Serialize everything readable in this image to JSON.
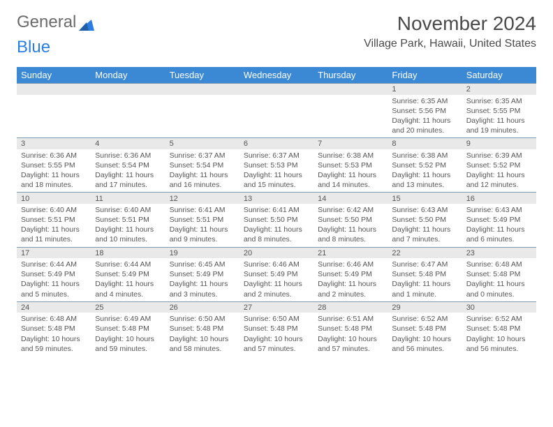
{
  "logo": {
    "word1": "General",
    "word2": "Blue"
  },
  "title": "November 2024",
  "subtitle": "Village Park, Hawaii, United States",
  "colors": {
    "header_bg": "#3b88d4",
    "header_text": "#ffffff",
    "daynum_bg": "#e9e9e9",
    "border": "#7f9ab0",
    "text": "#555555",
    "logo_gray": "#6b6b6b",
    "logo_blue": "#2a7de1"
  },
  "weekdays": [
    "Sunday",
    "Monday",
    "Tuesday",
    "Wednesday",
    "Thursday",
    "Friday",
    "Saturday"
  ],
  "weeks": [
    [
      null,
      null,
      null,
      null,
      null,
      {
        "n": "1",
        "sunrise": "Sunrise: 6:35 AM",
        "sunset": "Sunset: 5:56 PM",
        "daylight": "Daylight: 11 hours and 20 minutes."
      },
      {
        "n": "2",
        "sunrise": "Sunrise: 6:35 AM",
        "sunset": "Sunset: 5:55 PM",
        "daylight": "Daylight: 11 hours and 19 minutes."
      }
    ],
    [
      {
        "n": "3",
        "sunrise": "Sunrise: 6:36 AM",
        "sunset": "Sunset: 5:55 PM",
        "daylight": "Daylight: 11 hours and 18 minutes."
      },
      {
        "n": "4",
        "sunrise": "Sunrise: 6:36 AM",
        "sunset": "Sunset: 5:54 PM",
        "daylight": "Daylight: 11 hours and 17 minutes."
      },
      {
        "n": "5",
        "sunrise": "Sunrise: 6:37 AM",
        "sunset": "Sunset: 5:54 PM",
        "daylight": "Daylight: 11 hours and 16 minutes."
      },
      {
        "n": "6",
        "sunrise": "Sunrise: 6:37 AM",
        "sunset": "Sunset: 5:53 PM",
        "daylight": "Daylight: 11 hours and 15 minutes."
      },
      {
        "n": "7",
        "sunrise": "Sunrise: 6:38 AM",
        "sunset": "Sunset: 5:53 PM",
        "daylight": "Daylight: 11 hours and 14 minutes."
      },
      {
        "n": "8",
        "sunrise": "Sunrise: 6:38 AM",
        "sunset": "Sunset: 5:52 PM",
        "daylight": "Daylight: 11 hours and 13 minutes."
      },
      {
        "n": "9",
        "sunrise": "Sunrise: 6:39 AM",
        "sunset": "Sunset: 5:52 PM",
        "daylight": "Daylight: 11 hours and 12 minutes."
      }
    ],
    [
      {
        "n": "10",
        "sunrise": "Sunrise: 6:40 AM",
        "sunset": "Sunset: 5:51 PM",
        "daylight": "Daylight: 11 hours and 11 minutes."
      },
      {
        "n": "11",
        "sunrise": "Sunrise: 6:40 AM",
        "sunset": "Sunset: 5:51 PM",
        "daylight": "Daylight: 11 hours and 10 minutes."
      },
      {
        "n": "12",
        "sunrise": "Sunrise: 6:41 AM",
        "sunset": "Sunset: 5:51 PM",
        "daylight": "Daylight: 11 hours and 9 minutes."
      },
      {
        "n": "13",
        "sunrise": "Sunrise: 6:41 AM",
        "sunset": "Sunset: 5:50 PM",
        "daylight": "Daylight: 11 hours and 8 minutes."
      },
      {
        "n": "14",
        "sunrise": "Sunrise: 6:42 AM",
        "sunset": "Sunset: 5:50 PM",
        "daylight": "Daylight: 11 hours and 8 minutes."
      },
      {
        "n": "15",
        "sunrise": "Sunrise: 6:43 AM",
        "sunset": "Sunset: 5:50 PM",
        "daylight": "Daylight: 11 hours and 7 minutes."
      },
      {
        "n": "16",
        "sunrise": "Sunrise: 6:43 AM",
        "sunset": "Sunset: 5:49 PM",
        "daylight": "Daylight: 11 hours and 6 minutes."
      }
    ],
    [
      {
        "n": "17",
        "sunrise": "Sunrise: 6:44 AM",
        "sunset": "Sunset: 5:49 PM",
        "daylight": "Daylight: 11 hours and 5 minutes."
      },
      {
        "n": "18",
        "sunrise": "Sunrise: 6:44 AM",
        "sunset": "Sunset: 5:49 PM",
        "daylight": "Daylight: 11 hours and 4 minutes."
      },
      {
        "n": "19",
        "sunrise": "Sunrise: 6:45 AM",
        "sunset": "Sunset: 5:49 PM",
        "daylight": "Daylight: 11 hours and 3 minutes."
      },
      {
        "n": "20",
        "sunrise": "Sunrise: 6:46 AM",
        "sunset": "Sunset: 5:49 PM",
        "daylight": "Daylight: 11 hours and 2 minutes."
      },
      {
        "n": "21",
        "sunrise": "Sunrise: 6:46 AM",
        "sunset": "Sunset: 5:49 PM",
        "daylight": "Daylight: 11 hours and 2 minutes."
      },
      {
        "n": "22",
        "sunrise": "Sunrise: 6:47 AM",
        "sunset": "Sunset: 5:48 PM",
        "daylight": "Daylight: 11 hours and 1 minute."
      },
      {
        "n": "23",
        "sunrise": "Sunrise: 6:48 AM",
        "sunset": "Sunset: 5:48 PM",
        "daylight": "Daylight: 11 hours and 0 minutes."
      }
    ],
    [
      {
        "n": "24",
        "sunrise": "Sunrise: 6:48 AM",
        "sunset": "Sunset: 5:48 PM",
        "daylight": "Daylight: 10 hours and 59 minutes."
      },
      {
        "n": "25",
        "sunrise": "Sunrise: 6:49 AM",
        "sunset": "Sunset: 5:48 PM",
        "daylight": "Daylight: 10 hours and 59 minutes."
      },
      {
        "n": "26",
        "sunrise": "Sunrise: 6:50 AM",
        "sunset": "Sunset: 5:48 PM",
        "daylight": "Daylight: 10 hours and 58 minutes."
      },
      {
        "n": "27",
        "sunrise": "Sunrise: 6:50 AM",
        "sunset": "Sunset: 5:48 PM",
        "daylight": "Daylight: 10 hours and 57 minutes."
      },
      {
        "n": "28",
        "sunrise": "Sunrise: 6:51 AM",
        "sunset": "Sunset: 5:48 PM",
        "daylight": "Daylight: 10 hours and 57 minutes."
      },
      {
        "n": "29",
        "sunrise": "Sunrise: 6:52 AM",
        "sunset": "Sunset: 5:48 PM",
        "daylight": "Daylight: 10 hours and 56 minutes."
      },
      {
        "n": "30",
        "sunrise": "Sunrise: 6:52 AM",
        "sunset": "Sunset: 5:48 PM",
        "daylight": "Daylight: 10 hours and 56 minutes."
      }
    ]
  ]
}
